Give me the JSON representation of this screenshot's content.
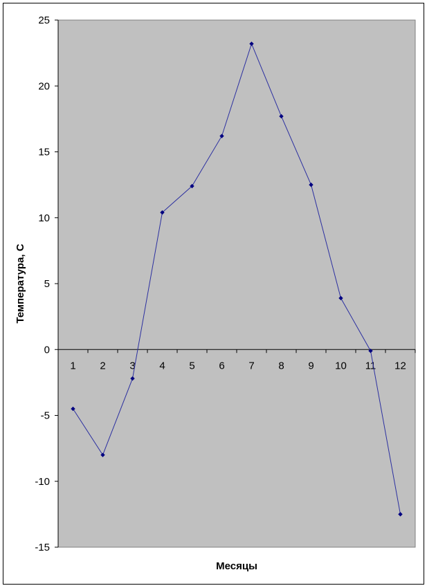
{
  "chart_data": {
    "type": "line",
    "title": "",
    "xlabel": "Месяцы",
    "ylabel": "Температура, С",
    "ylim": [
      -15,
      25
    ],
    "yticks": [
      25,
      20,
      15,
      10,
      5,
      0,
      -5,
      -10,
      -15
    ],
    "x": [
      1,
      2,
      3,
      4,
      5,
      6,
      7,
      8,
      9,
      10,
      11,
      12
    ],
    "series": [
      {
        "values": [
          -4.5,
          -8.0,
          -2.2,
          10.4,
          12.4,
          16.2,
          23.2,
          17.7,
          12.5,
          3.9,
          -0.1,
          -12.5
        ]
      }
    ],
    "grid": false,
    "legend": "none",
    "colors": {
      "plot_background": "#c0c0c0",
      "line": "#2b2fa0",
      "marker": "#000080"
    }
  }
}
